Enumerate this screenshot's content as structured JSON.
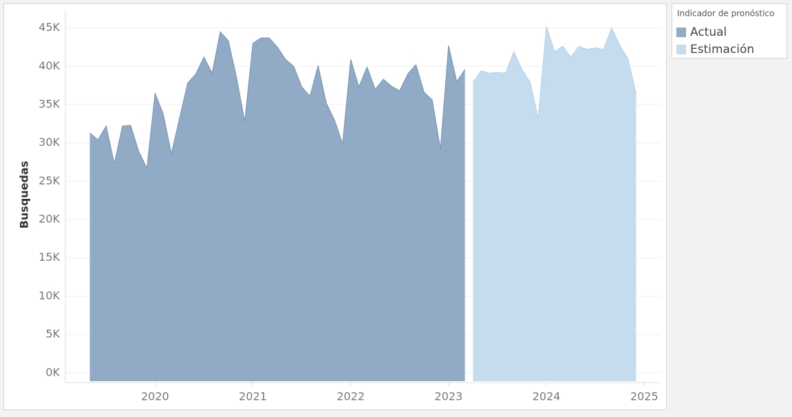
{
  "chart_data": {
    "type": "area",
    "y_label": "Busquedas",
    "legend_title": "Indicador de pronóstico",
    "legend_position": "right",
    "grid": true,
    "ylim": [
      -1100,
      47300
    ],
    "yticks": [
      {
        "value": 0,
        "label": "0K"
      },
      {
        "value": 5000,
        "label": "5K"
      },
      {
        "value": 10000,
        "label": "10K"
      },
      {
        "value": 15000,
        "label": "15K"
      },
      {
        "value": 20000,
        "label": "20K"
      },
      {
        "value": 25000,
        "label": "25K"
      },
      {
        "value": 30000,
        "label": "30K"
      },
      {
        "value": 35000,
        "label": "35K"
      },
      {
        "value": 40000,
        "label": "40K"
      },
      {
        "value": 45000,
        "label": "45K"
      }
    ],
    "xlim": [
      "2019-02",
      "2025-03"
    ],
    "xticks": [
      2020,
      2021,
      2022,
      2023,
      2024,
      2025
    ],
    "series": [
      {
        "name": "Actual",
        "color": "#91abc7",
        "stroke": "#7592b3",
        "x": [
          "2019-05",
          "2019-06",
          "2019-07",
          "2019-08",
          "2019-09",
          "2019-10",
          "2019-11",
          "2019-12",
          "2020-01",
          "2020-02",
          "2020-03",
          "2020-04",
          "2020-05",
          "2020-06",
          "2020-07",
          "2020-08",
          "2020-09",
          "2020-10",
          "2020-11",
          "2020-12",
          "2021-01",
          "2021-02",
          "2021-03",
          "2021-04",
          "2021-05",
          "2021-06",
          "2021-07",
          "2021-08",
          "2021-09",
          "2021-10",
          "2021-11",
          "2021-12",
          "2022-01",
          "2022-02",
          "2022-03",
          "2022-04",
          "2022-05",
          "2022-06",
          "2022-07",
          "2022-08",
          "2022-09",
          "2022-10",
          "2022-11",
          "2022-12",
          "2023-01",
          "2023-02",
          "2023-03"
        ],
        "values": [
          31300,
          30400,
          32200,
          27300,
          32200,
          32300,
          28900,
          26700,
          36500,
          33800,
          28600,
          33200,
          37800,
          39000,
          41200,
          39100,
          44500,
          43300,
          38500,
          32800,
          43000,
          43700,
          43700,
          42500,
          40900,
          40000,
          37300,
          36100,
          40100,
          35200,
          33000,
          29900,
          40900,
          37300,
          39900,
          37000,
          38300,
          37400,
          36800,
          39000,
          40200,
          36600,
          35600,
          29200,
          42700,
          38000,
          39600
        ]
      },
      {
        "name": "Estimación",
        "color": "#c5dcef",
        "stroke": "#b3cfe8",
        "x": [
          "2023-04",
          "2023-05",
          "2023-06",
          "2023-07",
          "2023-08",
          "2023-09",
          "2023-10",
          "2023-11",
          "2023-12",
          "2024-01",
          "2024-02",
          "2024-03",
          "2024-04",
          "2024-05",
          "2024-06",
          "2024-07",
          "2024-08",
          "2024-09",
          "2024-10",
          "2024-11",
          "2024-12"
        ],
        "values": [
          37900,
          39400,
          39100,
          39200,
          39100,
          41900,
          39600,
          37900,
          33200,
          45200,
          41900,
          42600,
          41200,
          42600,
          42200,
          42400,
          42200,
          45000,
          42700,
          41000,
          36400
        ]
      }
    ]
  }
}
